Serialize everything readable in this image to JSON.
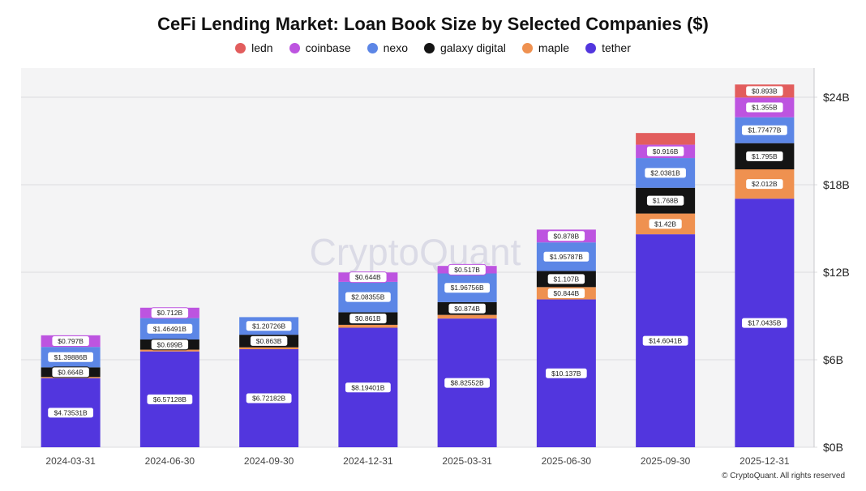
{
  "title": "CeFi Lending Market: Loan Book Size by Selected Companies ($)",
  "watermark": "CryptoQuant",
  "copyright": "© CryptoQuant. All rights reserved",
  "chart_data": {
    "type": "bar",
    "stacked": true,
    "title": "CeFi Lending Market: Loan Book Size by Selected Companies ($)",
    "categories": [
      "2024-03-31",
      "2024-06-30",
      "2024-09-30",
      "2024-12-31",
      "2025-03-31",
      "2025-06-30",
      "2025-09-30",
      "2025-12-31"
    ],
    "ylim": [
      0,
      26
    ],
    "yticks": [
      0,
      6,
      12,
      18,
      24
    ],
    "ytick_labels": [
      "$0B",
      "$6B",
      "$12B",
      "$18B",
      "$24B"
    ],
    "y_axis_position": "right",
    "grid": true,
    "legend_position": "top-center",
    "legend_order": [
      "ledn",
      "coinbase",
      "nexo",
      "galaxy digital",
      "maple",
      "tether"
    ],
    "series": [
      {
        "name": "tether",
        "color": "#5236de",
        "values": [
          4.73531,
          6.57128,
          6.72182,
          8.19401,
          8.82552,
          10.137,
          14.6041,
          17.0435
        ],
        "labels": [
          "$4.73531B",
          "$6.57128B",
          "$6.72182B",
          "$8.19401B",
          "$8.82552B",
          "$10.137B",
          "$14.6041B",
          "$17.0435B"
        ]
      },
      {
        "name": "maple",
        "color": "#ef9150",
        "values": [
          0.08,
          0.12,
          0.13,
          0.2,
          0.25,
          0.844,
          1.42,
          2.012
        ],
        "labels": [
          "",
          "",
          "",
          "",
          "",
          "$0.844B",
          "$1.42B",
          "$2.012B"
        ]
      },
      {
        "name": "galaxy digital",
        "color": "#141414",
        "values": [
          0.664,
          0.699,
          0.863,
          0.861,
          0.874,
          1.107,
          1.768,
          1.795
        ],
        "labels": [
          "$0.664B",
          "$0.699B",
          "$0.863B",
          "$0.861B",
          "$0.874B",
          "$1.107B",
          "$1.768B",
          "$1.795B"
        ]
      },
      {
        "name": "nexo",
        "color": "#5c86e6",
        "values": [
          1.39886,
          1.46491,
          1.20726,
          2.08355,
          1.96756,
          1.95787,
          2.0381,
          1.77477
        ],
        "labels": [
          "$1.39886B",
          "$1.46491B",
          "$1.20726B",
          "$2.08355B",
          "$1.96756B",
          "$1.95787B",
          "$2.0381B",
          "$1.77477B"
        ]
      },
      {
        "name": "coinbase",
        "color": "#bd54e0",
        "values": [
          0.797,
          0.712,
          0,
          0.644,
          0.517,
          0.878,
          0.916,
          1.355
        ],
        "labels": [
          "$0.797B",
          "$0.712B",
          "",
          "$0.644B",
          "$0.517B",
          "$0.878B",
          "$0.916B",
          "$1.355B"
        ]
      },
      {
        "name": "ledn",
        "color": "#e25d5d",
        "values": [
          0,
          0,
          0,
          0,
          0,
          0,
          0.8,
          0.893
        ],
        "labels": [
          "",
          "",
          "",
          "",
          "",
          "",
          "",
          "$0.893B"
        ]
      }
    ]
  }
}
